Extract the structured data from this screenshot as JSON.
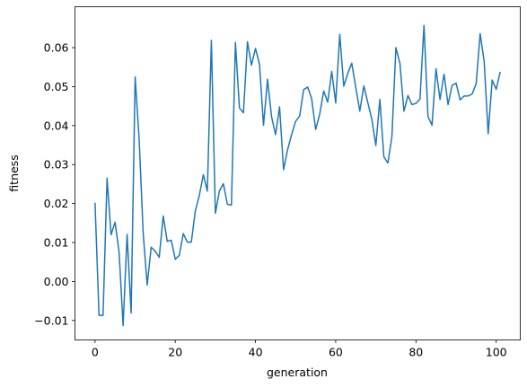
{
  "chart_data": {
    "type": "line",
    "title": "",
    "xlabel": "generation",
    "ylabel": "fitness",
    "xlim": [
      -5,
      106
    ],
    "ylim": [
      -0.015,
      0.0705
    ],
    "xticks": [
      0,
      20,
      40,
      60,
      80,
      100
    ],
    "xtick_labels": [
      "0",
      "20",
      "40",
      "60",
      "80",
      "100"
    ],
    "yticks": [
      -0.01,
      0.0,
      0.01,
      0.02,
      0.03,
      0.04,
      0.05,
      0.06
    ],
    "ytick_labels": [
      "−0.01",
      "0.00",
      "0.01",
      "0.02",
      "0.03",
      "0.04",
      "0.05",
      "0.06"
    ],
    "grid": false,
    "line_color": "#1f77b4",
    "series": [
      {
        "x": [
          0,
          1,
          2,
          3,
          4,
          5,
          6,
          7,
          8,
          9,
          10,
          11,
          12,
          13,
          14,
          15,
          16,
          17,
          18,
          19,
          20,
          21,
          22,
          23,
          24,
          25,
          26,
          27,
          28,
          29,
          30,
          31,
          32,
          33,
          34,
          35,
          36,
          37,
          38,
          39,
          40,
          41,
          42,
          43,
          44,
          45,
          46,
          47,
          48,
          49,
          50,
          51,
          52,
          53,
          54,
          55,
          56,
          57,
          58,
          59,
          60,
          61,
          62,
          63,
          64,
          65,
          66,
          67,
          68,
          69,
          70,
          71,
          72,
          73,
          74,
          75,
          76,
          77,
          78,
          79,
          80,
          81,
          82,
          83,
          84,
          85,
          86,
          87,
          88,
          89,
          90,
          91,
          92,
          93,
          94,
          95,
          96,
          97,
          98,
          99,
          100,
          101
        ],
        "y": [
          0.0202,
          -0.0087,
          -0.0087,
          0.0265,
          0.012,
          0.0152,
          0.0075,
          -0.0113,
          0.0121,
          -0.0081,
          0.0525,
          0.0365,
          0.0125,
          -0.0009,
          0.0088,
          0.0078,
          0.0062,
          0.0168,
          0.0103,
          0.0106,
          0.0057,
          0.0067,
          0.0123,
          0.0101,
          0.0101,
          0.0181,
          0.0221,
          0.0274,
          0.0232,
          0.0619,
          0.0175,
          0.0232,
          0.0251,
          0.0198,
          0.0196,
          0.0613,
          0.0445,
          0.0433,
          0.0615,
          0.0555,
          0.0598,
          0.0557,
          0.0401,
          0.0519,
          0.0423,
          0.0377,
          0.0448,
          0.0287,
          0.0338,
          0.0377,
          0.0411,
          0.0424,
          0.0492,
          0.0499,
          0.0469,
          0.039,
          0.0429,
          0.0489,
          0.046,
          0.0539,
          0.0458,
          0.0634,
          0.0501,
          0.0534,
          0.056,
          0.0498,
          0.0437,
          0.0502,
          0.0459,
          0.0416,
          0.0349,
          0.0467,
          0.032,
          0.0304,
          0.0371,
          0.06,
          0.056,
          0.0437,
          0.0477,
          0.0454,
          0.0457,
          0.0468,
          0.0657,
          0.0423,
          0.0401,
          0.0546,
          0.0467,
          0.0532,
          0.0454,
          0.0503,
          0.0509,
          0.0466,
          0.0476,
          0.0476,
          0.0481,
          0.0507,
          0.0636,
          0.0565,
          0.0379,
          0.0517,
          0.0493,
          0.0538
        ]
      }
    ]
  }
}
